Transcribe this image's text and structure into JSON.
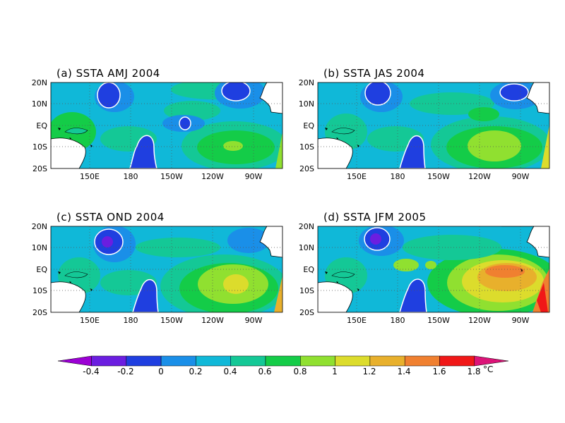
{
  "panels": [
    {
      "title": "(a) SSTA AMJ 2004"
    },
    {
      "title": "(b) SSTA JAS 2004"
    },
    {
      "title": "(c) SSTA OND 2004"
    },
    {
      "title": "(d) SSTA JFM 2005"
    }
  ],
  "axes": {
    "lat_labels": [
      "20N",
      "10N",
      "EQ",
      "10S",
      "20S"
    ],
    "lon_labels": [
      "150E",
      "180",
      "150W",
      "120W",
      "90W"
    ]
  },
  "colorbar": {
    "labels": [
      "-0.4",
      "-0.2",
      "0",
      "0.2",
      "0.4",
      "0.6",
      "0.8",
      "1",
      "1.2",
      "1.4",
      "1.6",
      "1.8"
    ],
    "unit": "°C",
    "colors": [
      "#9b00d4",
      "#6b1ee0",
      "#1f3fe0",
      "#1a8fe8",
      "#10b8d8",
      "#14c896",
      "#14cc48",
      "#90e030",
      "#dcdc2c",
      "#e8b02c",
      "#f08030",
      "#f01818",
      "#dc1478"
    ]
  }
}
